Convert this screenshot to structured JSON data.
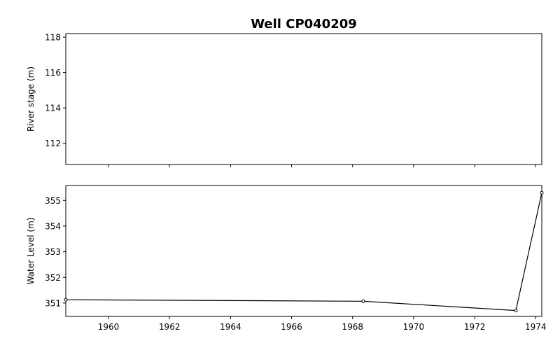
{
  "chart_data": [
    {
      "type": "line",
      "title": "Well CP040209",
      "xlabel": "",
      "ylabel": "River stage (m)",
      "xlim": [
        1958.6,
        1974.2
      ],
      "ylim": [
        110.8,
        118.2
      ],
      "yticks": [
        112,
        114,
        116,
        118
      ],
      "xticks": [
        1960,
        1962,
        1964,
        1966,
        1968,
        1970,
        1972,
        1974
      ],
      "show_xtick_labels": false,
      "series": [],
      "grid": false
    },
    {
      "type": "line",
      "title": "",
      "xlabel": "",
      "ylabel": "Water Level (m)",
      "xlim": [
        1958.6,
        1974.2
      ],
      "ylim": [
        350.48,
        355.58
      ],
      "yticks": [
        351,
        352,
        353,
        354,
        355
      ],
      "xticks": [
        1960,
        1962,
        1964,
        1966,
        1968,
        1970,
        1972,
        1974
      ],
      "show_xtick_labels": true,
      "series": [
        {
          "color": "#000000",
          "marker": "circle-open",
          "points": [
            {
              "x": 1958.6,
              "y": 351.13
            },
            {
              "x": 1968.35,
              "y": 351.07
            },
            {
              "x": 1973.35,
              "y": 350.71
            },
            {
              "x": 1974.2,
              "y": 355.3
            }
          ]
        }
      ],
      "grid": false
    }
  ]
}
